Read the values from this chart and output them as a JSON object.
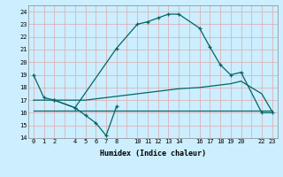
{
  "xlabel": "Humidex (Indice chaleur)",
  "bg_color": "#cceeff",
  "grid_color": "#aaddcc",
  "line_color": "#006666",
  "ylim": [
    14,
    24.5
  ],
  "xlim": [
    -0.5,
    23.5
  ],
  "yticks": [
    14,
    15,
    16,
    17,
    18,
    19,
    20,
    21,
    22,
    23,
    24
  ],
  "xticks": [
    0,
    1,
    2,
    4,
    5,
    6,
    7,
    8,
    10,
    11,
    12,
    13,
    14,
    16,
    17,
    18,
    19,
    20,
    22,
    23
  ],
  "line1_x": [
    0,
    1,
    2,
    4,
    8,
    10,
    11,
    12,
    13,
    14,
    16,
    17,
    18,
    19,
    20,
    22,
    23
  ],
  "line1_y": [
    19.0,
    17.2,
    17.0,
    16.4,
    21.1,
    23.0,
    23.2,
    23.5,
    23.8,
    23.8,
    22.7,
    21.2,
    19.8,
    19.0,
    19.2,
    16.0,
    16.0
  ],
  "line2_x": [
    0,
    1,
    2,
    4,
    5,
    6,
    7,
    8,
    10,
    11,
    12,
    13,
    14,
    16,
    17,
    18,
    19,
    20,
    22,
    23
  ],
  "line2_y": [
    17.0,
    17.0,
    17.0,
    17.0,
    17.0,
    17.1,
    17.2,
    17.3,
    17.5,
    17.6,
    17.7,
    17.8,
    17.9,
    18.0,
    18.1,
    18.2,
    18.3,
    18.5,
    17.5,
    16.1
  ],
  "line3_x": [
    0,
    1,
    2,
    4,
    5,
    6,
    7,
    8,
    10,
    11,
    12,
    13,
    14,
    16,
    17,
    18,
    19,
    20,
    22,
    23
  ],
  "line3_y": [
    16.2,
    16.2,
    16.2,
    16.2,
    16.2,
    16.2,
    16.2,
    16.2,
    16.2,
    16.2,
    16.2,
    16.2,
    16.2,
    16.2,
    16.2,
    16.2,
    16.2,
    16.2,
    16.2,
    16.2
  ],
  "line4_x": [
    2,
    4,
    5,
    6,
    7,
    8
  ],
  "line4_y": [
    17.0,
    16.4,
    15.8,
    15.2,
    14.2,
    16.5
  ]
}
